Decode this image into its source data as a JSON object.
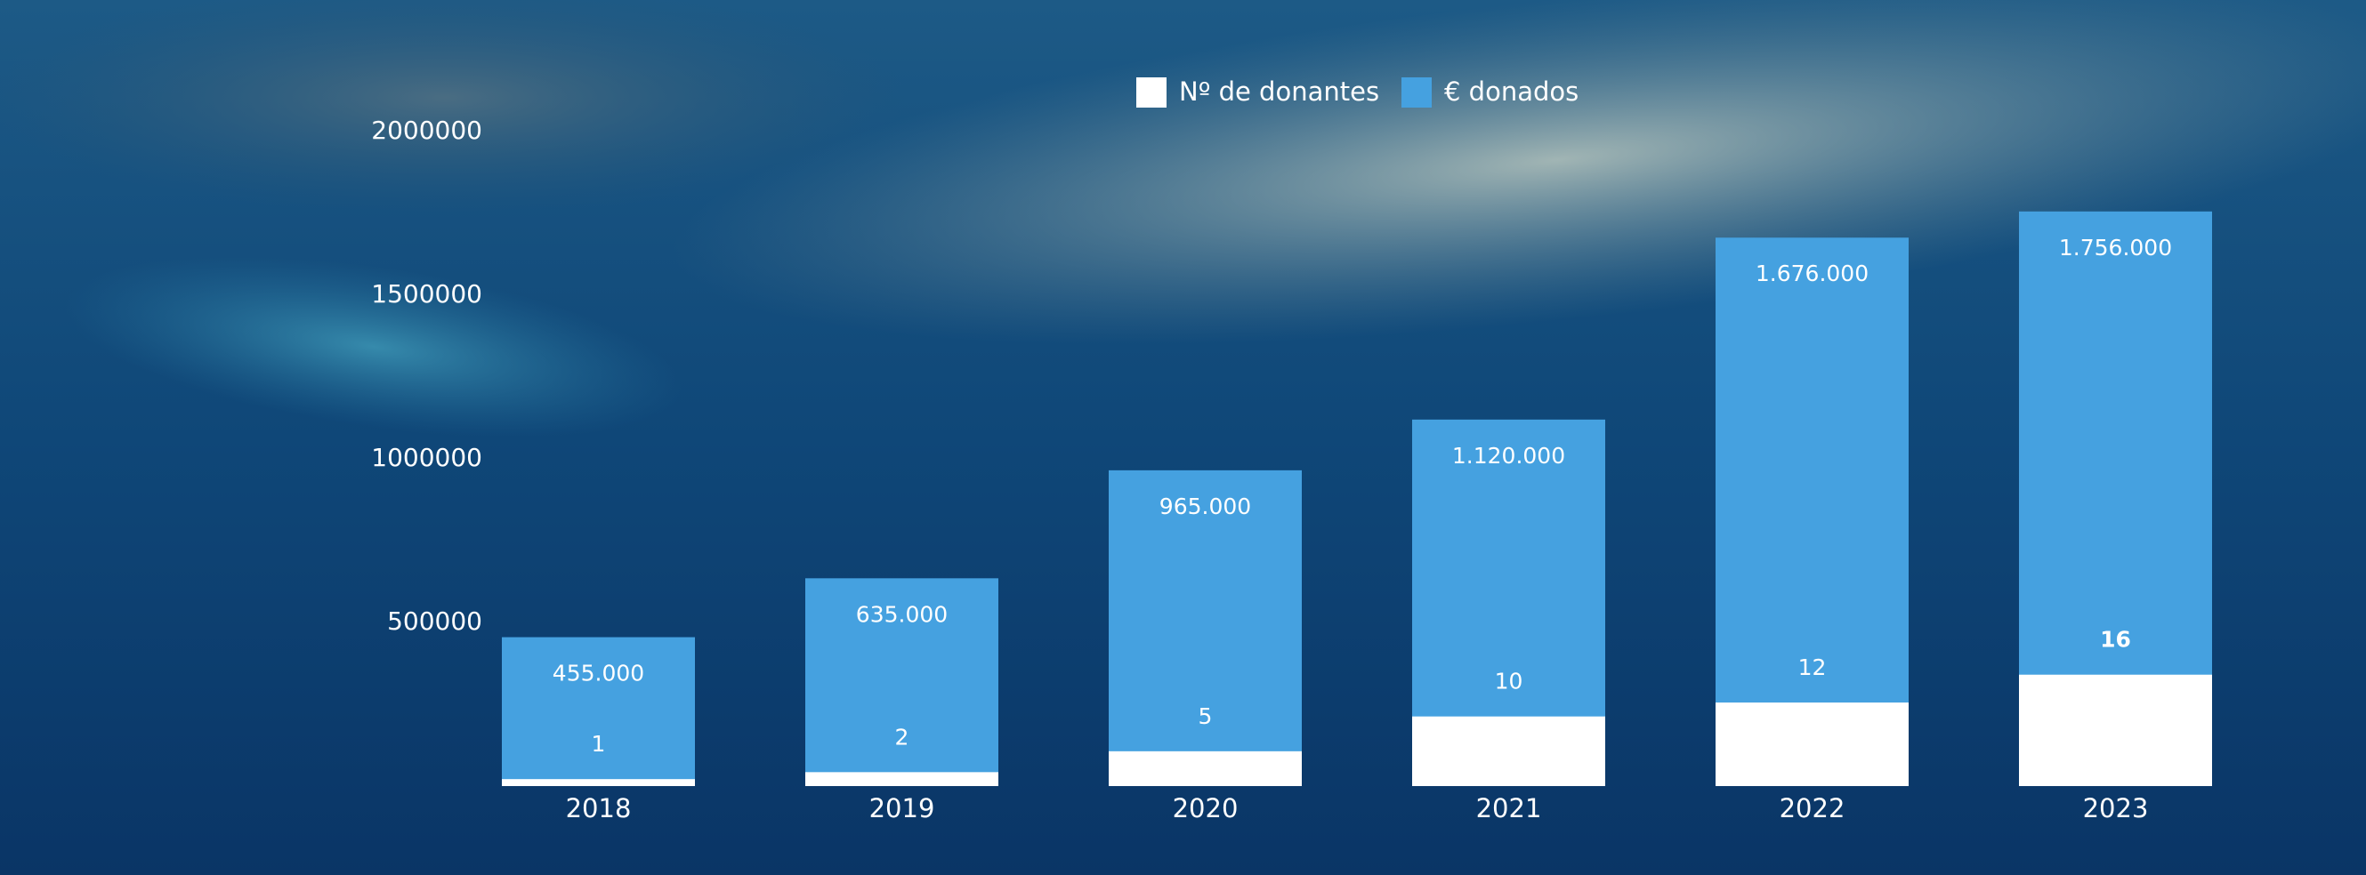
{
  "chart_data": {
    "type": "bar",
    "categories": [
      "2018",
      "2019",
      "2020",
      "2021",
      "2022",
      "2023"
    ],
    "series": [
      {
        "name": "Nº de donantes",
        "color": "#ffffff",
        "values": [
          1,
          2,
          5,
          10,
          12,
          16
        ],
        "axis": "y2"
      },
      {
        "name": "€ donados",
        "color": "#45a1e0",
        "values": [
          455000,
          635000,
          965000,
          1120000,
          1676000,
          1756000
        ],
        "value_labels": [
          "455.000",
          "635.000",
          "965.000",
          "1.120.000",
          "1.676.000",
          "1.756.000"
        ]
      }
    ],
    "ylim": [
      0,
      2000000
    ],
    "yticks": [
      500000,
      1000000,
      1500000,
      2000000
    ],
    "y2lim": [
      0,
      94
    ],
    "legend": "top"
  }
}
